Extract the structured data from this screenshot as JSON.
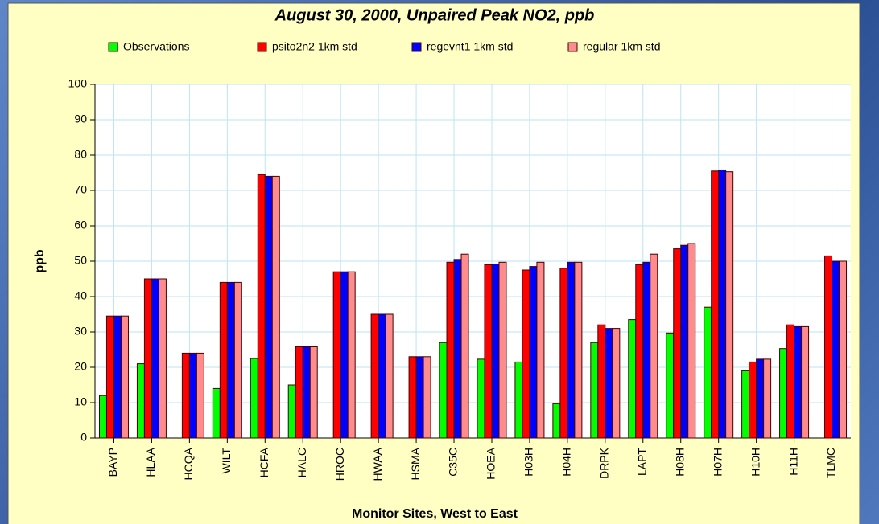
{
  "chart_data": {
    "type": "bar",
    "title": "August 30, 2000, Unpaired Peak NO2, ppb",
    "x_label": "Monitor Sites, West to East",
    "y_label": "ppb",
    "categories": [
      "BAYP",
      "HLAA",
      "HCQA",
      "WILT",
      "HCFA",
      "HALC",
      "HROC",
      "HWAA",
      "HSMA",
      "C35C",
      "HOEA",
      "H03H",
      "H04H",
      "DRPK",
      "LAPT",
      "H08H",
      "H07H",
      "H10H",
      "H11H",
      "TLMC"
    ],
    "series": [
      {
        "name": "Observations",
        "color": "#00ff00",
        "values": [
          12,
          21,
          null,
          14,
          22.5,
          15,
          null,
          null,
          null,
          27,
          22.3,
          21.5,
          9.7,
          27,
          33.5,
          29.7,
          37,
          19,
          25.3,
          null
        ]
      },
      {
        "name": "psito2n2 1km std",
        "color": "#ff0000",
        "values": [
          34.5,
          45,
          24,
          44,
          74.5,
          25.8,
          47,
          35,
          23,
          49.7,
          49,
          47.5,
          48,
          32,
          49,
          53.5,
          75.5,
          21.5,
          32,
          51.5
        ]
      },
      {
        "name": "regevnt1 1km std",
        "color": "#0000ff",
        "values": [
          34.5,
          45,
          24,
          44,
          74,
          25.8,
          47,
          35,
          23,
          50.5,
          49.2,
          48.5,
          49.7,
          31,
          49.7,
          54.5,
          75.8,
          22.3,
          31.5,
          50
        ]
      },
      {
        "name": "regular 1km std",
        "color": "#ff8c8c",
        "values": [
          34.5,
          45,
          24,
          44,
          74,
          25.8,
          47,
          35,
          23,
          52,
          49.7,
          49.7,
          49.7,
          31,
          52,
          55,
          75.3,
          22.3,
          31.5,
          50
        ]
      }
    ],
    "ylim": [
      0,
      100
    ],
    "yticks": [
      0,
      10,
      20,
      30,
      40,
      50,
      60,
      70,
      80,
      90,
      100
    ],
    "grid": true,
    "legend": "top"
  }
}
